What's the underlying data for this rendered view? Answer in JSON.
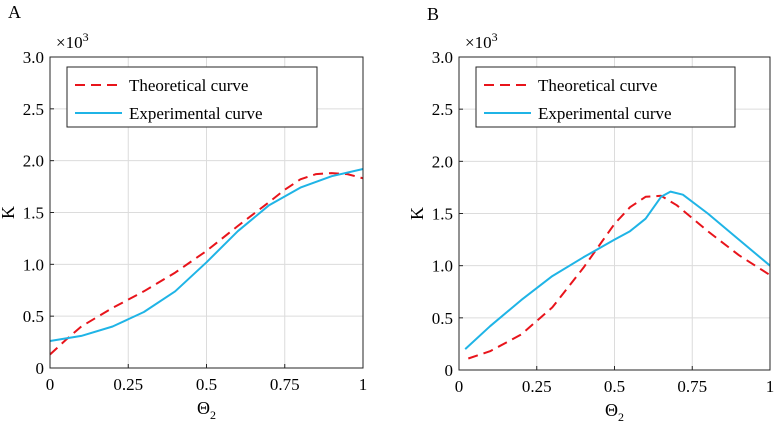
{
  "chart_data": [
    {
      "type": "line",
      "panel_label": "A",
      "xlabel": "Θ",
      "xlabel_sub": "2",
      "ylabel": "K",
      "y_multiplier": {
        "base": "×10",
        "exponent": "3"
      },
      "xlim": [
        0,
        1
      ],
      "ylim": [
        0,
        3.0
      ],
      "xticks": [
        0,
        0.25,
        0.5,
        0.75,
        1
      ],
      "xtick_labels": [
        "0",
        "0.25",
        "0.5",
        "0.75",
        "1"
      ],
      "yticks": [
        0,
        0.5,
        1.0,
        1.5,
        2.0,
        2.5,
        3.0
      ],
      "ytick_labels": [
        "0",
        "0.5",
        "1.0",
        "1.5",
        "2.0",
        "2.5",
        "3.0"
      ],
      "grid": true,
      "legend_position": "top-left",
      "series": [
        {
          "name": "Theoretical curve",
          "style": "dashed",
          "color": "#e8141b",
          "x": [
            0,
            0.05,
            0.1,
            0.2,
            0.3,
            0.4,
            0.5,
            0.6,
            0.7,
            0.75,
            0.8,
            0.85,
            0.9,
            0.95,
            1.0
          ],
          "y": [
            0.13,
            0.27,
            0.4,
            0.58,
            0.74,
            0.92,
            1.13,
            1.37,
            1.6,
            1.72,
            1.82,
            1.87,
            1.88,
            1.87,
            1.83
          ]
        },
        {
          "name": "Experimental curve",
          "style": "solid",
          "color": "#1fb4e6",
          "x": [
            0,
            0.1,
            0.2,
            0.3,
            0.4,
            0.5,
            0.6,
            0.7,
            0.8,
            0.9,
            1.0
          ],
          "y": [
            0.26,
            0.31,
            0.4,
            0.54,
            0.74,
            1.02,
            1.32,
            1.57,
            1.74,
            1.85,
            1.92
          ]
        }
      ]
    },
    {
      "type": "line",
      "panel_label": "B",
      "xlabel": "Θ",
      "xlabel_sub": "2",
      "ylabel": "K",
      "y_multiplier": {
        "base": "×10",
        "exponent": "3"
      },
      "xlim": [
        0,
        1
      ],
      "ylim": [
        0,
        3.0
      ],
      "xticks": [
        0,
        0.25,
        0.5,
        0.75,
        1
      ],
      "xtick_labels": [
        "0",
        "0.25",
        "0.5",
        "0.75",
        "1"
      ],
      "yticks": [
        0,
        0.5,
        1.0,
        1.5,
        2.0,
        2.5,
        3.0
      ],
      "ytick_labels": [
        "0",
        "0.5",
        "1.0",
        "1.5",
        "2.0",
        "2.5",
        "3.0"
      ],
      "grid": true,
      "legend_position": "top-left",
      "series": [
        {
          "name": "Theoretical curve",
          "style": "dashed",
          "color": "#e8141b",
          "x": [
            0.03,
            0.1,
            0.2,
            0.3,
            0.4,
            0.5,
            0.55,
            0.6,
            0.65,
            0.7,
            0.8,
            0.9,
            1.0
          ],
          "y": [
            0.11,
            0.18,
            0.34,
            0.6,
            0.98,
            1.4,
            1.56,
            1.66,
            1.67,
            1.58,
            1.33,
            1.1,
            0.91
          ]
        },
        {
          "name": "Experimental curve",
          "style": "solid",
          "color": "#1fb4e6",
          "x": [
            0.02,
            0.1,
            0.2,
            0.3,
            0.4,
            0.5,
            0.55,
            0.6,
            0.65,
            0.68,
            0.72,
            0.8,
            0.9,
            1.0
          ],
          "y": [
            0.2,
            0.42,
            0.67,
            0.9,
            1.08,
            1.25,
            1.33,
            1.45,
            1.66,
            1.71,
            1.68,
            1.5,
            1.25,
            1.0
          ]
        }
      ]
    }
  ]
}
